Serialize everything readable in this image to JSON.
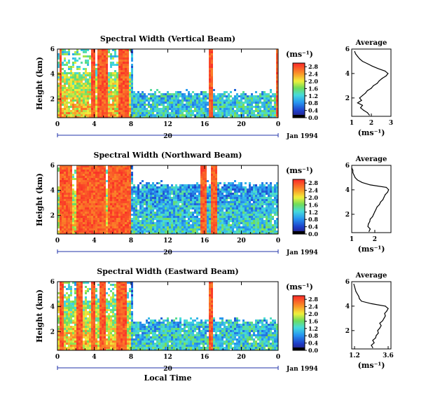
{
  "chart_data": [
    {
      "type": "heatmap",
      "title": "Spectral Width (Vertical Beam)",
      "ylabel": "Height (km)",
      "xticks": [
        "0",
        "4",
        "8",
        "12",
        "16",
        "20",
        "0"
      ],
      "yticks": [
        "2",
        "4",
        "6"
      ],
      "xlim": [
        0,
        24
      ],
      "ylim": [
        0.5,
        6.0
      ],
      "date_marker": "20",
      "date_label": "Jan 1994",
      "colorbar": {
        "unit": "(ms⁻¹)",
        "ticks": [
          "0.0",
          "0.4",
          "0.8",
          "1.2",
          "1.6",
          "2.0",
          "2.4",
          "2.8"
        ],
        "range": [
          0.0,
          3.0
        ]
      },
      "profile": {
        "title": "Average",
        "xlabel": "(ms⁻¹)",
        "xticks": [
          "1",
          "2",
          "3"
        ],
        "xlim": [
          1,
          3
        ],
        "yticks": [
          "2",
          "4",
          "6"
        ],
        "ylim": [
          0.5,
          6.0
        ],
        "height": [
          0.6,
          0.8,
          1.0,
          1.2,
          1.4,
          1.6,
          1.8,
          2.0,
          2.2,
          2.4,
          2.6,
          2.8,
          3.0,
          3.2,
          3.4,
          3.6,
          3.8,
          4.0,
          4.2,
          4.4,
          4.6,
          4.8,
          5.0,
          5.2,
          5.4,
          5.6,
          5.8
        ],
        "width": [
          1.9,
          1.8,
          1.6,
          1.45,
          1.55,
          1.3,
          1.5,
          1.4,
          1.55,
          1.7,
          1.8,
          2.0,
          2.1,
          2.3,
          2.4,
          2.55,
          2.75,
          2.85,
          2.7,
          2.35,
          2.05,
          1.8,
          1.55,
          1.4,
          1.3,
          1.2,
          1.15
        ]
      }
    },
    {
      "type": "heatmap",
      "title": "Spectral Width (Northward Beam)",
      "ylabel": "Height (km)",
      "xticks": [
        "0",
        "4",
        "8",
        "12",
        "16",
        "20",
        "0"
      ],
      "yticks": [
        "2",
        "4",
        "6"
      ],
      "xlim": [
        0,
        24
      ],
      "ylim": [
        0.5,
        6.0
      ],
      "date_marker": "20",
      "date_label": "Jan 1994",
      "colorbar": {
        "unit": "(ms⁻¹)",
        "ticks": [
          "0.0",
          "0.4",
          "0.8",
          "1.2",
          "1.6",
          "2.0",
          "2.4",
          "2.8"
        ],
        "range": [
          0.0,
          3.0
        ]
      },
      "profile": {
        "title": "Average",
        "xlabel": "(ms⁻¹)",
        "xticks": [
          "1",
          "2"
        ],
        "xlim": [
          1,
          2.7
        ],
        "yticks": [
          "2",
          "4",
          "6"
        ],
        "ylim": [
          0.5,
          6.0
        ],
        "height": [
          0.6,
          0.8,
          1.0,
          1.2,
          1.4,
          1.6,
          1.8,
          2.0,
          2.2,
          2.4,
          2.6,
          2.8,
          3.0,
          3.2,
          3.4,
          3.6,
          3.8,
          4.0,
          4.2,
          4.4,
          4.6,
          4.8,
          5.0,
          5.2,
          5.4,
          5.6,
          5.8
        ],
        "width": [
          1.75,
          1.8,
          1.7,
          1.72,
          1.78,
          1.8,
          1.9,
          1.95,
          2.0,
          2.05,
          2.1,
          2.2,
          2.25,
          2.35,
          2.4,
          2.45,
          2.55,
          2.6,
          2.5,
          1.8,
          1.45,
          1.25,
          1.15,
          1.1,
          1.05,
          1.05,
          1.0
        ]
      }
    },
    {
      "type": "heatmap",
      "title": "Spectral Width (Eastward Beam)",
      "ylabel": "Height (km)",
      "xlabel": "Local Time",
      "xticks": [
        "0",
        "4",
        "8",
        "12",
        "16",
        "20",
        "0"
      ],
      "yticks": [
        "2",
        "4",
        "6"
      ],
      "xlim": [
        0,
        24
      ],
      "ylim": [
        0.5,
        6.0
      ],
      "date_marker": "20",
      "date_label": "Jan 1994",
      "colorbar": {
        "unit": "(ms⁻¹)",
        "ticks": [
          "0.0",
          "0.4",
          "0.8",
          "1.2",
          "1.6",
          "2.0",
          "2.4",
          "2.8"
        ],
        "range": [
          0.0,
          3.0
        ]
      },
      "profile": {
        "title": "Average",
        "xlabel": "(ms⁻¹)",
        "xticks": [
          "1.2",
          "3.6"
        ],
        "xlim": [
          1.0,
          3.8
        ],
        "yticks": [
          "2",
          "4",
          "6"
        ],
        "ylim": [
          0.5,
          6.0
        ],
        "height": [
          0.6,
          0.8,
          1.0,
          1.2,
          1.4,
          1.6,
          1.8,
          2.0,
          2.2,
          2.4,
          2.6,
          2.8,
          3.0,
          3.2,
          3.4,
          3.6,
          3.8,
          4.0,
          4.2,
          4.4,
          4.6,
          4.8,
          5.0,
          5.2,
          5.4,
          5.6,
          5.8
        ],
        "width": [
          2.5,
          2.4,
          2.6,
          2.5,
          2.7,
          2.75,
          2.9,
          2.85,
          3.0,
          3.1,
          3.0,
          3.2,
          3.3,
          3.4,
          3.35,
          3.5,
          3.6,
          3.4,
          2.4,
          1.7,
          1.55,
          1.5,
          1.4,
          1.3,
          1.25,
          1.2,
          1.15
        ]
      }
    }
  ]
}
